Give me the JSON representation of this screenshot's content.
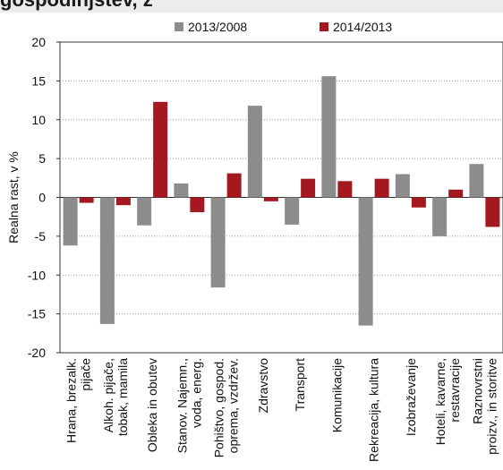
{
  "header": {
    "partial_title": "gospodinjstev, z"
  },
  "chart_data": {
    "type": "bar",
    "ylabel": "Realna rast, v %",
    "xlabel": "",
    "ylim": [
      -20,
      20
    ],
    "yticks": [
      "20",
      "15",
      "10",
      "5",
      "0",
      "-5",
      "-10",
      "-15",
      "-20"
    ],
    "ytick_values": [
      20,
      15,
      10,
      5,
      0,
      -5,
      -10,
      -15,
      -20
    ],
    "grid": true,
    "legend_position": "top",
    "categories": [
      [
        "Hrana, brezalk.",
        "pijače"
      ],
      [
        "Alkoh. pijače,",
        "tobak, mamila"
      ],
      [
        "Obleka in obutev"
      ],
      [
        "Stanov. Najemn.,",
        "voda, energ."
      ],
      [
        "Pohištvo, gospod.",
        "oprema, vzdržev."
      ],
      [
        "Zdravstvo"
      ],
      [
        "Transport"
      ],
      [
        "Komunikacije"
      ],
      [
        "Rekreacija, kultura"
      ],
      [
        "Izobraževanje"
      ],
      [
        "Hoteli, kavarne,",
        "restavracije"
      ],
      [
        "Raznovrstni",
        "proizv., in storitve"
      ]
    ],
    "series": [
      {
        "name": "2013/2008",
        "color": "#8c8c8c",
        "values": [
          -6.2,
          -16.3,
          -3.6,
          1.8,
          -11.6,
          11.8,
          -3.5,
          15.6,
          -16.5,
          3.0,
          -5.0,
          4.3
        ]
      },
      {
        "name": "2014/2013",
        "color": "#a3191f",
        "values": [
          -0.7,
          -1.0,
          12.3,
          -1.9,
          3.1,
          -0.5,
          2.4,
          2.1,
          2.4,
          -1.3,
          1.0,
          -3.8
        ]
      }
    ]
  }
}
